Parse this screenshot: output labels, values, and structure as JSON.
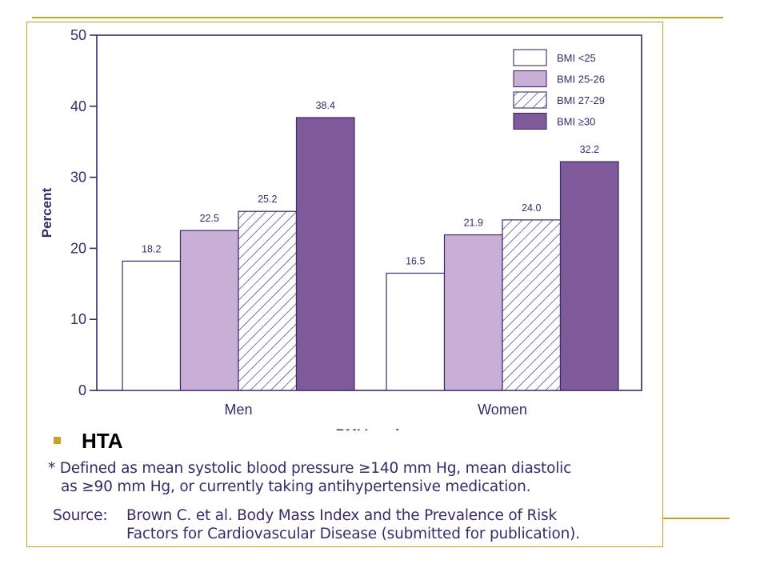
{
  "slide": {
    "bullet_text": "HTA",
    "footnote_line1": "* Defined as mean systolic blood pressure ≥140 mm Hg, mean diastolic",
    "footnote_line2": "as ≥90 mm Hg, or currently taking antihypertensive medication.",
    "source_label": "Source:",
    "source_line1": "Brown C. et al. Body Mass Index and the Prevalence of Risk",
    "source_line2": "Factors for Cardiovascular Disease (submitted for publication).",
    "colors": {
      "rule": "#c9a227",
      "ink": "#3a2a6a",
      "light": "#c9aed5",
      "dark": "#7e5a9b"
    }
  },
  "chart_data": {
    "type": "bar",
    "categories": [
      "Men",
      "Women"
    ],
    "series": [
      {
        "name": "BMI <25",
        "values": [
          18.2,
          16.5
        ],
        "style": "white"
      },
      {
        "name": "BMI 25-26",
        "values": [
          22.5,
          21.9
        ],
        "style": "light-purple"
      },
      {
        "name": "BMI 27-29",
        "values": [
          25.2,
          24.0
        ],
        "style": "hatched"
      },
      {
        "name": "BMI ≥30",
        "values": [
          38.4,
          32.2
        ],
        "style": "dark-purple"
      }
    ],
    "value_labels": [
      [
        "18.2",
        "16.5"
      ],
      [
        "22.5",
        "21.9"
      ],
      [
        "25.2",
        "24.0"
      ],
      [
        "38.4",
        "32.2"
      ]
    ],
    "xlabel": "BMI Levels",
    "ylabel": "Percent",
    "ylim": [
      0,
      50
    ],
    "yticks": [
      "0",
      "10",
      "20",
      "30",
      "40",
      "50"
    ],
    "grid": false,
    "legend_position": "top-right"
  }
}
